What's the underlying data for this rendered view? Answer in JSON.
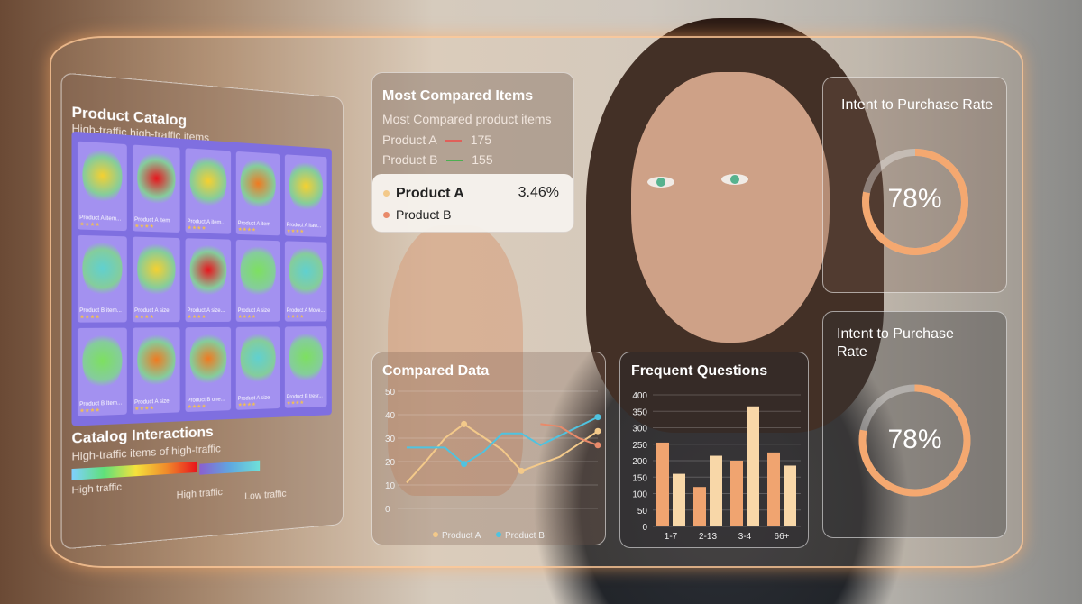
{
  "catalog": {
    "title": "Product Catalog",
    "subtitle": "High-traffic high-traffic items",
    "items": [
      {
        "label": "Product A item...",
        "heat": 0.5
      },
      {
        "label": "Product A item",
        "heat": 1.0
      },
      {
        "label": "Product A item...",
        "heat": 0.55
      },
      {
        "label": "Product A item",
        "heat": 0.7
      },
      {
        "label": "Product A itaw...",
        "heat": 0.45
      },
      {
        "label": "Product B item...",
        "heat": 0.2
      },
      {
        "label": "Product A size",
        "heat": 0.55
      },
      {
        "label": "Product A size...",
        "heat": 0.85
      },
      {
        "label": "Product A size",
        "heat": 0.4
      },
      {
        "label": "Product A Move...",
        "heat": 0.1
      },
      {
        "label": "Product B Item...",
        "heat": 0.35
      },
      {
        "label": "Product A size",
        "heat": 0.75
      },
      {
        "label": "Product B one...",
        "heat": 0.65
      },
      {
        "label": "Product A size",
        "heat": 0.2
      },
      {
        "label": "Product B tresr...",
        "heat": 0.25
      }
    ],
    "rating": "★★★★"
  },
  "interactions": {
    "title": "Catalog Interactions",
    "subtitle": "High-traffic items of high-traffic",
    "legend": [
      "High traffic",
      "High traffic",
      "Low traffic"
    ]
  },
  "compared_items": {
    "title": "Most Compared Items",
    "subtitle": "Most Compared product items",
    "rows": [
      {
        "name": "Product A",
        "value": "175",
        "color": "#e0605a"
      },
      {
        "name": "Product B",
        "value": "155",
        "color": "#4caf50"
      }
    ],
    "card": {
      "primary": "Product A",
      "percent": "3.46%",
      "secondary": "Product B"
    }
  },
  "chart_data": [
    {
      "type": "line",
      "title": "Compared Data",
      "ylim": [
        0,
        50
      ],
      "yticks": [
        0,
        10,
        20,
        30,
        40,
        50
      ],
      "x": [
        1,
        2,
        3,
        4,
        5,
        6,
        7,
        8,
        9,
        10,
        11
      ],
      "series": [
        {
          "name": "Product A",
          "color": "#f3c98a",
          "values": [
            11,
            20,
            30,
            36,
            null,
            25,
            16,
            null,
            22,
            null,
            33
          ]
        },
        {
          "name": "Product B",
          "color": "#4fc3e0",
          "values": [
            26,
            26,
            26,
            19,
            24,
            32,
            32,
            27,
            null,
            null,
            39
          ]
        },
        {
          "color": "#e98a6a",
          "values": [
            null,
            null,
            null,
            null,
            null,
            null,
            null,
            36,
            35,
            30,
            27
          ]
        }
      ]
    },
    {
      "type": "bar",
      "title": "Frequent Questions",
      "ylim": [
        0,
        400
      ],
      "yticks": [
        0,
        50,
        100,
        150,
        200,
        250,
        300,
        350,
        400
      ],
      "categories": [
        "1-7",
        "2-13",
        "3-4",
        "66+"
      ],
      "series": [
        {
          "color": "#f0a470",
          "values": [
            255,
            120,
            200,
            225
          ]
        },
        {
          "color": "#f8d7a8",
          "values": [
            160,
            215,
            365,
            185
          ]
        }
      ]
    }
  ],
  "intent1": {
    "title": "Intent to Purchase Rate",
    "value": "78%",
    "fraction": 0.78
  },
  "intent2": {
    "title": "Intent to Purchase Rate",
    "value": "78%",
    "fraction": 0.78
  },
  "colors": {
    "glow": "#ffc896",
    "ring": "#f4a870"
  }
}
